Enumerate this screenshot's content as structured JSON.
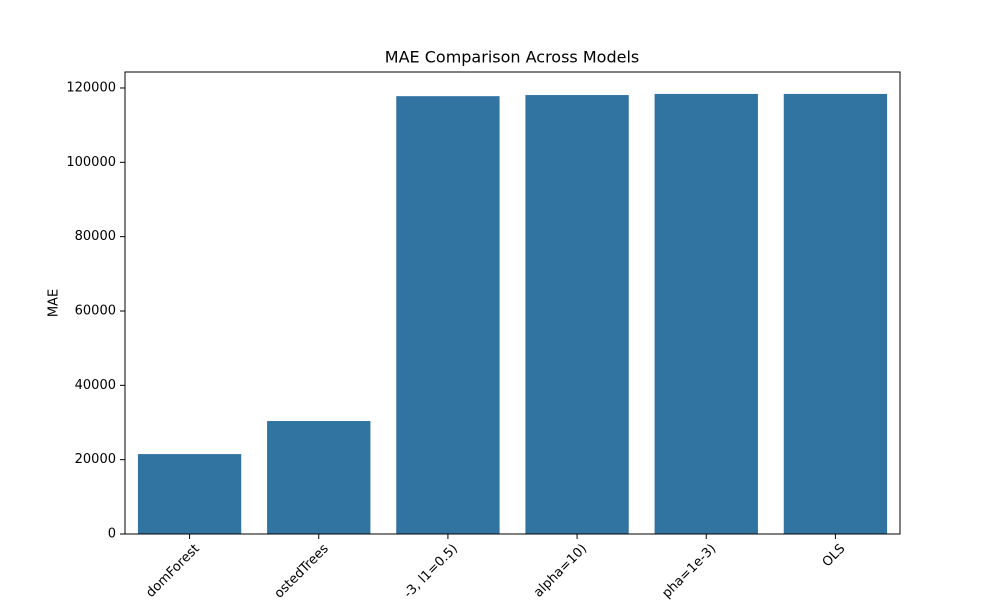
{
  "chart_data": {
    "type": "bar",
    "title": "MAE Comparison Across Models",
    "y_label": "MAE",
    "categories": [
      "domForest",
      "ostedTrees",
      "-3, l1=0.5)",
      "alpha=10)",
      "pha=1e-3)",
      "OLS"
    ],
    "values": [
      21500,
      30400,
      117800,
      118100,
      118400,
      118400
    ],
    "color": "#3274a1",
    "ylim": [
      0,
      124300
    ],
    "yticks": [
      0,
      20000,
      40000,
      60000,
      80000,
      100000,
      120000
    ],
    "grid": false
  }
}
